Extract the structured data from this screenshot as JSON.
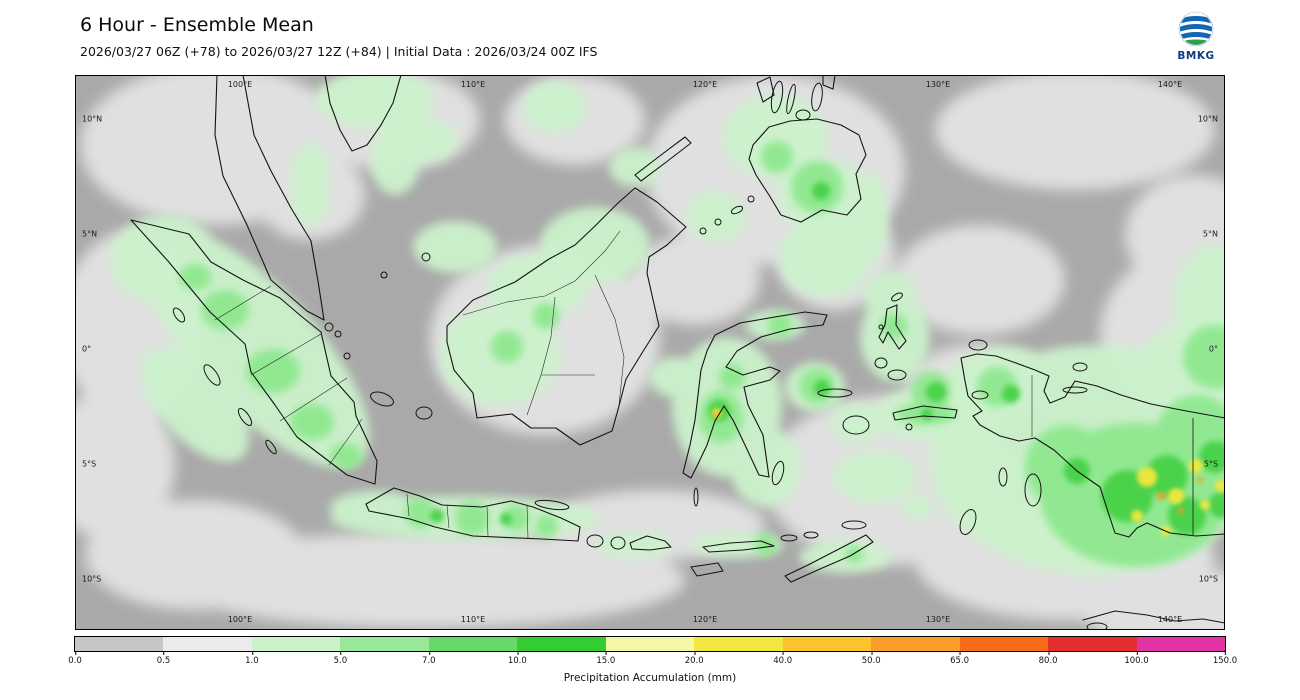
{
  "header": {
    "title": "6 Hour - Ensemble Mean",
    "subtitle": "2026/03/27 06Z (+78) to 2026/03/27 12Z (+84) | Initial Data : 2026/03/24 00Z IFS"
  },
  "logo": {
    "text": "BMKG"
  },
  "map": {
    "background_color": "#a9a9a9",
    "x_ticks": [
      "100°E",
      "110°E",
      "120°E",
      "130°E",
      "140°E"
    ],
    "y_ticks": [
      "10°N",
      "5°N",
      "0°",
      "5°S",
      "10°S"
    ]
  },
  "colorbar": {
    "label": "Precipitation Accumulation (mm)",
    "tick_labels": [
      "0.0",
      "0.5",
      "1.0",
      "5.0",
      "7.0",
      "10.0",
      "15.0",
      "20.0",
      "40.0",
      "50.0",
      "65.0",
      "80.0",
      "100.0",
      "150.0"
    ],
    "colors": [
      "#c6c6c6",
      "#ebebeb",
      "#ccf2cc",
      "#99e899",
      "#66d966",
      "#33cc33",
      "#f7f7a8",
      "#f2e73e",
      "#fcc32e",
      "#fb9b2a",
      "#f56b16",
      "#e62e2e",
      "#e233a5"
    ]
  },
  "chart_data": {
    "type": "heatmap",
    "title": "6 Hour - Ensemble Mean",
    "value_label": "Precipitation Accumulation (mm)",
    "x_axis_ticks": [
      "100°E",
      "110°E",
      "120°E",
      "130°E",
      "140°E"
    ],
    "y_axis_ticks": [
      "10°N",
      "5°N",
      "0°",
      "5°S",
      "10°S"
    ],
    "levels_mm": [
      0.0,
      0.5,
      1.0,
      5.0,
      7.0,
      10.0,
      15.0,
      20.0,
      40.0,
      50.0,
      65.0,
      80.0,
      100.0,
      150.0
    ],
    "level_colors": [
      "#c6c6c6",
      "#ebebeb",
      "#ccf2cc",
      "#99e899",
      "#66d966",
      "#33cc33",
      "#f7f7a8",
      "#f2e73e",
      "#fcc32e",
      "#fb9b2a",
      "#f56b16",
      "#e62e2e",
      "#e233a5"
    ],
    "legend_position": "bottom"
  }
}
